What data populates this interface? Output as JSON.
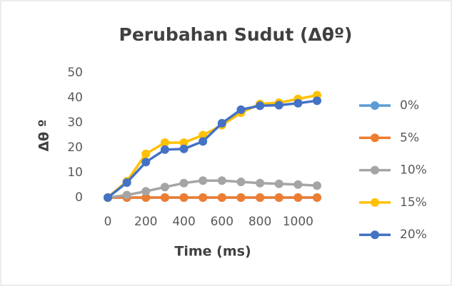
{
  "chart_data": {
    "type": "line",
    "title": "Perubahan Sudut (Δθº)",
    "x_label": "Time (ms)",
    "y_label": "Δθ º",
    "x": [
      0,
      100,
      200,
      300,
      400,
      500,
      600,
      700,
      800,
      900,
      1000,
      1100
    ],
    "xlim": [
      0,
      1100
    ],
    "xticks": [
      0,
      200,
      400,
      600,
      800,
      1000
    ],
    "ylim": [
      0,
      50
    ],
    "yticks": [
      0,
      10,
      20,
      30,
      40,
      50
    ],
    "grid": false,
    "legend": "right",
    "series": [
      {
        "name": "0%",
        "color": "#5b9bd5",
        "values": [
          0,
          0,
          0,
          0,
          0,
          0,
          0,
          0,
          0,
          0,
          0,
          0
        ]
      },
      {
        "name": "5%",
        "color": "#ed7d31",
        "values": [
          0,
          0,
          0,
          0,
          0,
          0,
          0,
          0,
          0,
          0,
          0,
          0
        ]
      },
      {
        "name": "10%",
        "color": "#a5a5a5",
        "values": [
          0,
          1,
          2.5,
          4.2,
          5.8,
          6.8,
          6.8,
          6.3,
          5.8,
          5.5,
          5.2,
          4.8
        ]
      },
      {
        "name": "15%",
        "color": "#ffc000",
        "values": [
          0,
          6.5,
          17.5,
          22,
          22,
          25,
          29,
          34,
          37.5,
          38,
          39.5,
          41
        ]
      },
      {
        "name": "20%",
        "color": "#4472c4",
        "values": [
          0,
          6,
          14.2,
          19.2,
          19.5,
          22.5,
          29.8,
          35.2,
          36.8,
          37,
          37.8,
          38.8
        ]
      }
    ]
  }
}
